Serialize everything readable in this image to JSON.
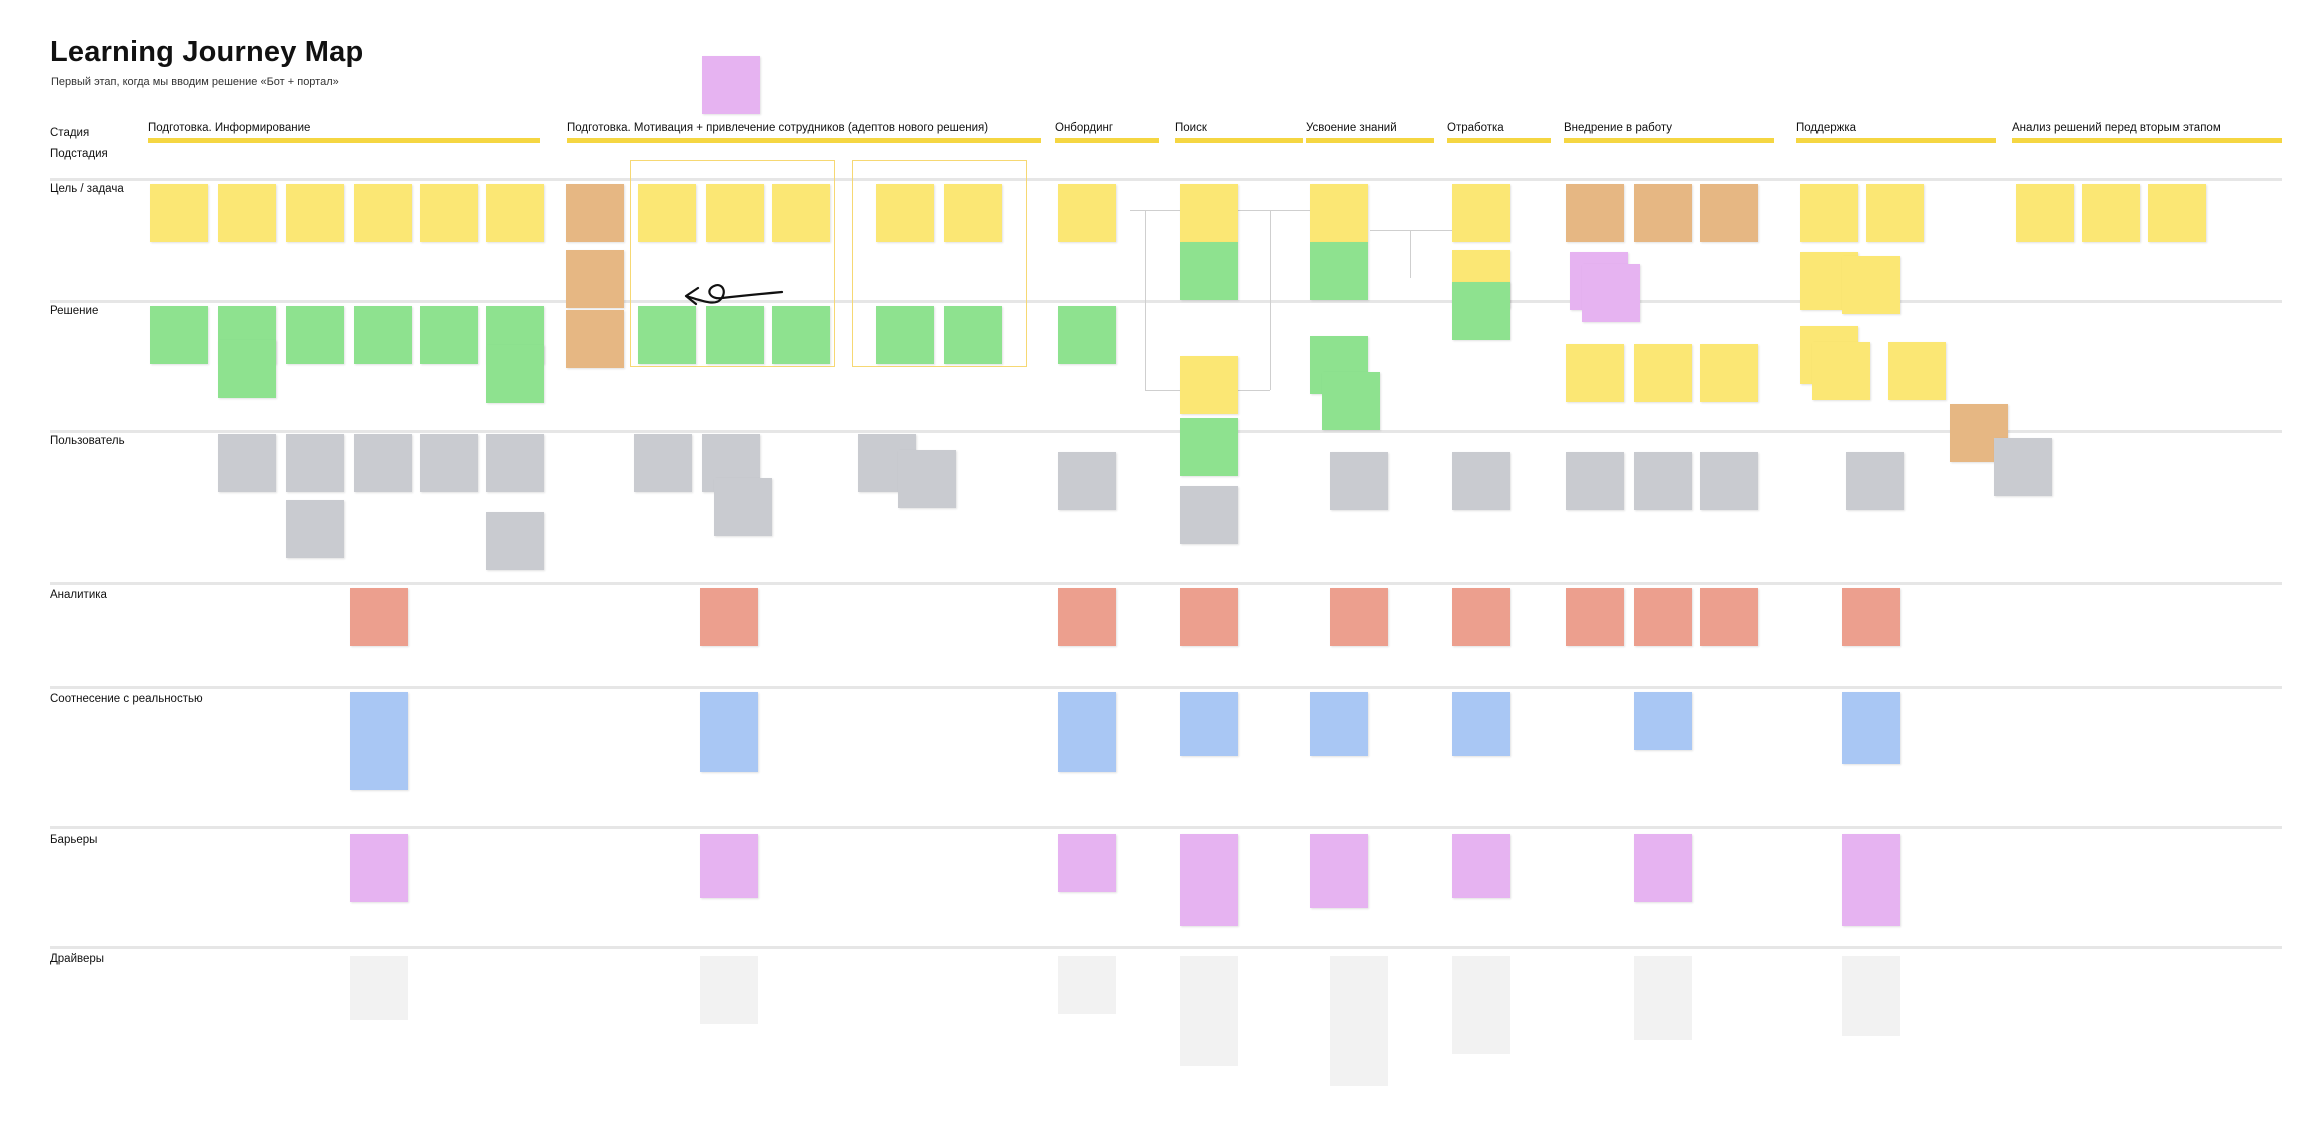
{
  "header": {
    "title": "Learning Journey Map",
    "subtitle": "Первый этап, когда мы вводим решение «Бот + портал»"
  },
  "rows": {
    "stage": "Стадия",
    "substage": "Подстадия",
    "goal": "Цель / задача",
    "solution": "Решение",
    "user": "Пользователь",
    "analytics": "Аналитика",
    "reality": "Соотнесение с реальностью",
    "barriers": "Барьеры",
    "drivers": "Драйверы"
  },
  "stages": [
    "Подготовка. Информирование",
    "Подготовка. Мотивация + привлечение сотрудников (адептов нового решения)",
    "Онбординг",
    "Поиск",
    "Усвоение знаний",
    "Отработка",
    "Внедрение в работу",
    "Поддержка",
    "Анализ решений перед вторым этапом"
  ],
  "colors": {
    "stage_bar": "#f5d642",
    "sticky_yellow": "#fbe774",
    "sticky_green": "#8ee28f",
    "sticky_orange": "#e6b783",
    "sticky_grey": "#c9cbd0",
    "sticky_pink": "#ec9f8e",
    "sticky_blue": "#a9c7f4",
    "sticky_violet": "#e6b3f1"
  }
}
